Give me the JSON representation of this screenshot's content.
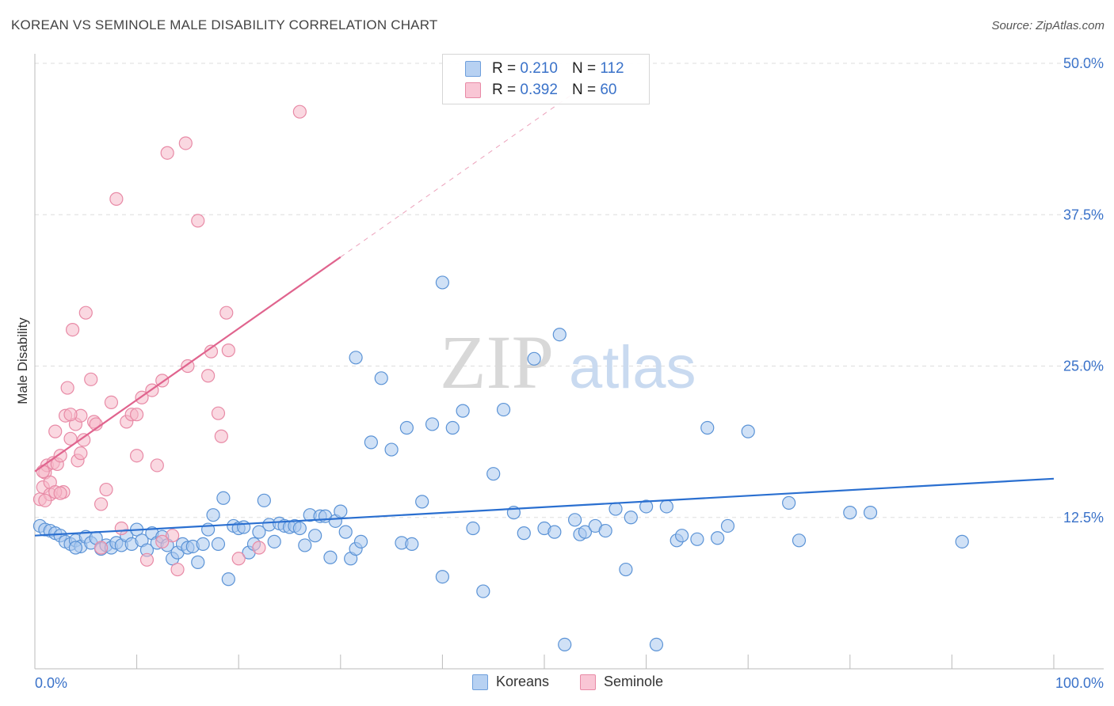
{
  "header": {
    "title": "KOREAN VS SEMINOLE MALE DISABILITY CORRELATION CHART",
    "source": "Source: ZipAtlas.com"
  },
  "watermark": {
    "zip": "ZIP",
    "atlas": "atlas"
  },
  "colors": {
    "koreans_fill": "#a9c8ef",
    "koreans_stroke": "#5b93d6",
    "koreans_line": "#2a6fd0",
    "seminole_fill": "#f6b8c9",
    "seminole_stroke": "#e88aa6",
    "seminole_line": "#e0648e",
    "grid": "#dddddd",
    "tick_label": "#3a72c9"
  },
  "legend": {
    "rows": [
      {
        "r_label": "R =",
        "r_value": "0.210",
        "n_label": "N =",
        "n_value": "112"
      },
      {
        "r_label": "R =",
        "r_value": "0.392",
        "n_label": "N =",
        "n_value": "60"
      }
    ]
  },
  "chart_data": {
    "type": "scatter",
    "title": "KOREAN VS SEMINOLE MALE DISABILITY CORRELATION CHART",
    "xlabel": "",
    "ylabel": "Male Disability",
    "xlim": [
      0,
      100
    ],
    "ylim": [
      0,
      50
    ],
    "x_tick_labels": [
      "0.0%",
      "100.0%"
    ],
    "y_ticks": [
      12.5,
      25.0,
      37.5,
      50.0
    ],
    "y_tick_labels": [
      "12.5%",
      "25.0%",
      "37.5%",
      "50.0%"
    ],
    "grid": "horizontal dashed",
    "legend_position": "top-center",
    "series": [
      {
        "name": "Koreans",
        "points": [
          [
            0.5,
            11.8
          ],
          [
            1,
            11.5
          ],
          [
            1.5,
            11.4
          ],
          [
            2,
            11.2
          ],
          [
            2.5,
            11.0
          ],
          [
            3,
            10.5
          ],
          [
            3.5,
            10.3
          ],
          [
            4,
            10.6
          ],
          [
            4.5,
            10.1
          ],
          [
            5,
            10.9
          ],
          [
            5.5,
            10.4
          ],
          [
            6,
            10.8
          ],
          [
            6.5,
            9.9
          ],
          [
            7,
            10.2
          ],
          [
            7.5,
            10.0
          ],
          [
            8,
            10.4
          ],
          [
            8.5,
            10.2
          ],
          [
            9,
            11.0
          ],
          [
            9.5,
            10.3
          ],
          [
            10,
            11.5
          ],
          [
            10.5,
            10.6
          ],
          [
            11,
            9.8
          ],
          [
            11.5,
            11.2
          ],
          [
            12,
            10.4
          ],
          [
            12.5,
            10.9
          ],
          [
            13,
            10.2
          ],
          [
            13.5,
            9.1
          ],
          [
            14,
            9.6
          ],
          [
            14.5,
            10.3
          ],
          [
            15,
            10.0
          ],
          [
            15.5,
            10.1
          ],
          [
            16,
            8.8
          ],
          [
            16.5,
            10.3
          ],
          [
            17,
            11.5
          ],
          [
            17.5,
            12.7
          ],
          [
            18,
            10.3
          ],
          [
            18.5,
            14.1
          ],
          [
            19,
            7.4
          ],
          [
            19.5,
            11.8
          ],
          [
            20,
            11.6
          ],
          [
            20.5,
            11.7
          ],
          [
            21,
            9.6
          ],
          [
            21.5,
            10.3
          ],
          [
            22,
            11.3
          ],
          [
            22.5,
            13.9
          ],
          [
            23,
            11.9
          ],
          [
            23.5,
            10.5
          ],
          [
            24,
            12.0
          ],
          [
            24.5,
            11.8
          ],
          [
            25,
            11.7
          ],
          [
            25.5,
            11.8
          ],
          [
            26,
            11.6
          ],
          [
            26.5,
            10.2
          ],
          [
            27,
            12.7
          ],
          [
            27.5,
            11.0
          ],
          [
            28,
            12.6
          ],
          [
            28.5,
            12.6
          ],
          [
            29,
            9.2
          ],
          [
            29.5,
            12.2
          ],
          [
            30,
            13.0
          ],
          [
            30.5,
            11.3
          ],
          [
            31,
            9.1
          ],
          [
            31.5,
            9.9
          ],
          [
            32,
            10.5
          ],
          [
            31.5,
            25.7
          ],
          [
            34,
            24.0
          ],
          [
            33,
            18.7
          ],
          [
            35,
            18.1
          ],
          [
            36,
            10.4
          ],
          [
            36.5,
            19.9
          ],
          [
            37,
            10.3
          ],
          [
            38,
            13.8
          ],
          [
            39,
            20.2
          ],
          [
            40,
            7.6
          ],
          [
            41,
            19.9
          ],
          [
            42,
            21.3
          ],
          [
            43,
            11.6
          ],
          [
            44,
            6.4
          ],
          [
            45,
            16.1
          ],
          [
            46,
            21.4
          ],
          [
            40,
            31.9
          ],
          [
            47,
            12.9
          ],
          [
            48,
            11.2
          ],
          [
            49,
            25.6
          ],
          [
            50,
            11.6
          ],
          [
            51,
            11.3
          ],
          [
            52,
            2.0
          ],
          [
            51.5,
            27.6
          ],
          [
            53,
            12.3
          ],
          [
            53.5,
            11.1
          ],
          [
            54,
            11.3
          ],
          [
            55,
            11.8
          ],
          [
            56,
            11.4
          ],
          [
            57,
            13.2
          ],
          [
            58,
            8.2
          ],
          [
            58.5,
            12.5
          ],
          [
            60,
            13.4
          ],
          [
            61,
            2.0
          ],
          [
            62,
            13.4
          ],
          [
            63,
            10.6
          ],
          [
            63.5,
            11.0
          ],
          [
            65,
            10.7
          ],
          [
            66,
            19.9
          ],
          [
            67,
            10.8
          ],
          [
            68,
            11.8
          ],
          [
            70,
            19.6
          ],
          [
            74,
            13.7
          ],
          [
            75,
            10.6
          ],
          [
            80,
            12.9
          ],
          [
            82,
            12.9
          ],
          [
            91,
            10.5
          ],
          [
            4,
            10.0
          ]
        ]
      },
      {
        "name": "Seminole",
        "points": [
          [
            0.5,
            14.0
          ],
          [
            0.8,
            15.0
          ],
          [
            1,
            16.2
          ],
          [
            1.2,
            16.8
          ],
          [
            1.5,
            14.4
          ],
          [
            1.8,
            17.0
          ],
          [
            2,
            19.6
          ],
          [
            2.2,
            16.9
          ],
          [
            2.5,
            17.6
          ],
          [
            2.8,
            14.6
          ],
          [
            3,
            20.9
          ],
          [
            3.2,
            23.2
          ],
          [
            3.5,
            19.0
          ],
          [
            3.7,
            28.0
          ],
          [
            4,
            20.2
          ],
          [
            4.2,
            17.2
          ],
          [
            4.5,
            17.8
          ],
          [
            4.8,
            18.9
          ],
          [
            5,
            29.4
          ],
          [
            5.5,
            23.9
          ],
          [
            5.8,
            20.4
          ],
          [
            6,
            20.2
          ],
          [
            6.5,
            13.6
          ],
          [
            7,
            14.8
          ],
          [
            7.5,
            22.0
          ],
          [
            8,
            38.8
          ],
          [
            8.5,
            11.6
          ],
          [
            9,
            20.4
          ],
          [
            9.5,
            21.0
          ],
          [
            10,
            17.6
          ],
          [
            10.5,
            22.4
          ],
          [
            11,
            9.0
          ],
          [
            11.5,
            23.0
          ],
          [
            12,
            16.8
          ],
          [
            12.5,
            23.8
          ],
          [
            13,
            42.6
          ],
          [
            13.5,
            11.0
          ],
          [
            14,
            8.2
          ],
          [
            14.8,
            43.4
          ],
          [
            15,
            25.0
          ],
          [
            16,
            37.0
          ],
          [
            17,
            24.2
          ],
          [
            17.3,
            26.2
          ],
          [
            18,
            21.1
          ],
          [
            18.3,
            19.2
          ],
          [
            18.8,
            29.4
          ],
          [
            19,
            26.3
          ],
          [
            20,
            9.1
          ],
          [
            22,
            10.0
          ],
          [
            26,
            46.0
          ],
          [
            4.5,
            20.9
          ],
          [
            1.5,
            15.4
          ],
          [
            0.8,
            16.3
          ],
          [
            2,
            14.6
          ],
          [
            10,
            21.0
          ],
          [
            3.5,
            21.0
          ],
          [
            6.5,
            10.0
          ],
          [
            2.5,
            14.5
          ],
          [
            1,
            13.9
          ],
          [
            12.5,
            10.5
          ]
        ]
      }
    ],
    "trend_lines": [
      {
        "series": "Koreans",
        "x": [
          0,
          100
        ],
        "y": [
          11.0,
          15.7
        ],
        "style": "solid"
      },
      {
        "series": "Seminole",
        "x": [
          0,
          30
        ],
        "y": [
          16.3,
          34.0
        ],
        "style": "solid"
      },
      {
        "series": "Seminole",
        "x": [
          30,
          53
        ],
        "y": [
          34.0,
          47.6
        ],
        "style": "dashed"
      }
    ]
  },
  "bottom_legend": {
    "koreans": "Koreans",
    "seminole": "Seminole"
  }
}
